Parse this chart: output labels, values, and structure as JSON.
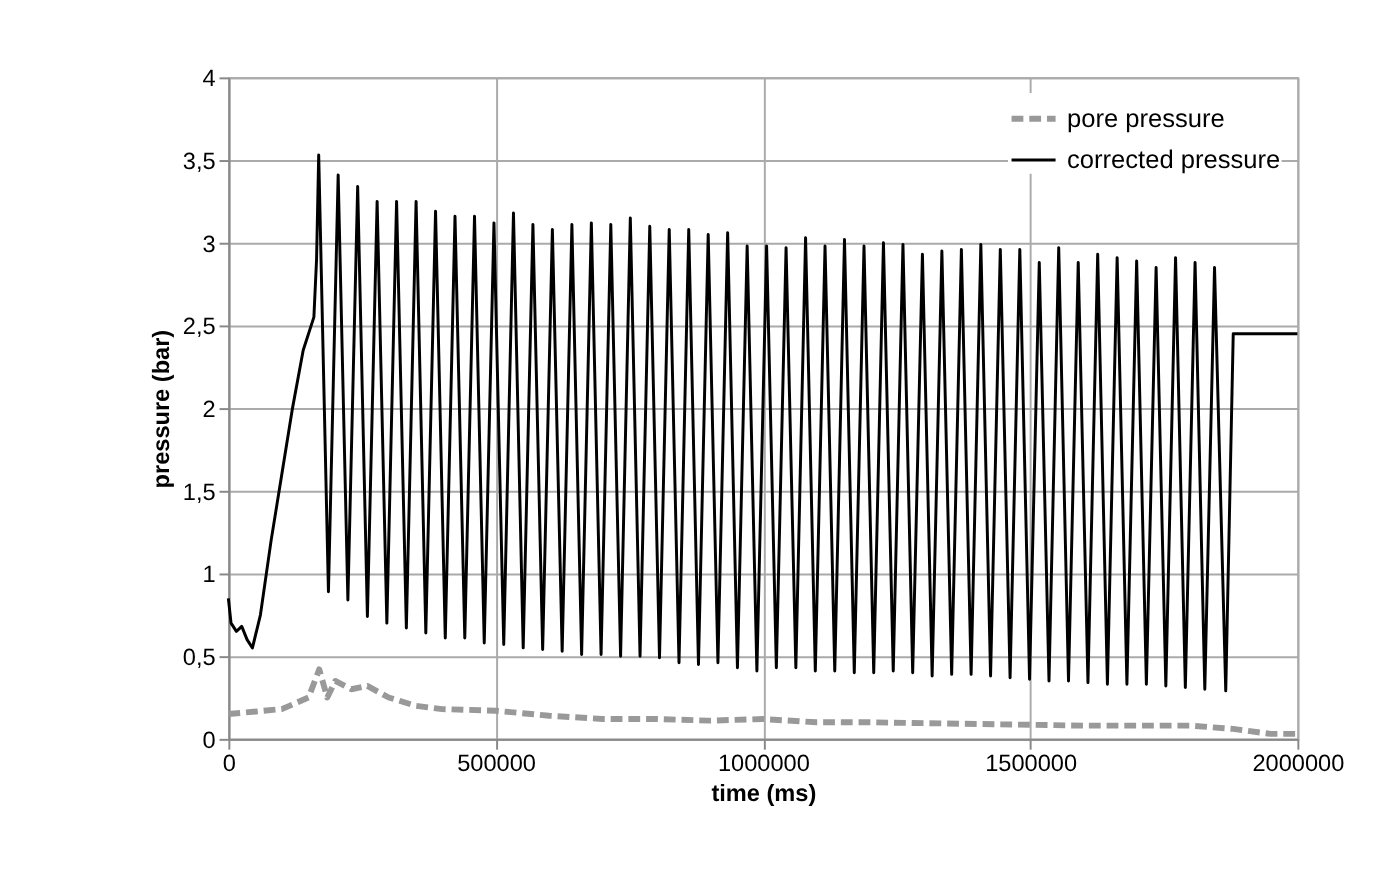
{
  "chart_data": {
    "type": "line",
    "xlabel": "time (ms)",
    "ylabel": "pressure (bar)",
    "xlim": [
      0,
      2000000
    ],
    "xticks": [
      0,
      500000,
      1000000,
      1500000,
      2000000
    ],
    "ylim": [
      0,
      4
    ],
    "yticks": [
      0,
      {
        "value": 0.5,
        "label": "0,5"
      },
      1,
      {
        "value": 1.5,
        "label": "1,5"
      },
      2,
      {
        "value": 2.5,
        "label": "2,5"
      },
      3,
      {
        "value": 3.5,
        "label": "3,5"
      },
      4
    ],
    "grid": true,
    "legend": "top right",
    "marker": "none",
    "series": [
      {
        "name": "pore pressure",
        "color": "#999999",
        "line_style": "dashed",
        "x": [
          0,
          100000,
          150000,
          170000,
          185000,
          200000,
          230000,
          260000,
          300000,
          350000,
          400000,
          500000,
          600000,
          700000,
          800000,
          900000,
          1000000,
          1100000,
          1200000,
          1400000,
          1600000,
          1800000,
          1880000,
          1950000,
          2000000
        ],
        "values": [
          0.15,
          0.18,
          0.25,
          0.42,
          0.25,
          0.35,
          0.3,
          0.32,
          0.25,
          0.2,
          0.18,
          0.17,
          0.14,
          0.12,
          0.12,
          0.11,
          0.12,
          0.1,
          0.1,
          0.09,
          0.08,
          0.08,
          0.06,
          0.03,
          0.03
        ]
      },
      {
        "name": "corrected pressure",
        "color": "#000000",
        "line_style": "solid",
        "x": [
          0,
          5000,
          15000,
          25000,
          35000,
          45000,
          60000,
          80000,
          100000,
          120000,
          140000,
          160000,
          165000,
          169000,
          187200,
          205400,
          223600,
          241900,
          260100,
          278300,
          296500,
          314700,
          333000,
          351200,
          369400,
          387600,
          405800,
          424000,
          442300,
          460500,
          478700,
          496900,
          515200,
          533400,
          551600,
          569800,
          588000,
          606200,
          624500,
          642700,
          660900,
          679100,
          697300,
          715500,
          733800,
          752000,
          770200,
          788400,
          806600,
          824800,
          843100,
          861300,
          879500,
          897700,
          915900,
          934100,
          952400,
          970600,
          988800,
          1007000,
          1025200,
          1043400,
          1061700,
          1079900,
          1098100,
          1116300,
          1134500,
          1152700,
          1171000,
          1189200,
          1207400,
          1225600,
          1243900,
          1262100,
          1280300,
          1298500,
          1316700,
          1334900,
          1353200,
          1371400,
          1389600,
          1407800,
          1426000,
          1444200,
          1462500,
          1480700,
          1498900,
          1517100,
          1535300,
          1553500,
          1571800,
          1590000,
          1608200,
          1626400,
          1644600,
          1662800,
          1681100,
          1699300,
          1717500,
          1735700,
          1753900,
          1772100,
          1790400,
          1808600,
          1826800,
          1845000,
          1866000,
          1880000,
          2000000
        ],
        "values": [
          0.85,
          0.7,
          0.65,
          0.68,
          0.6,
          0.55,
          0.75,
          1.2,
          1.6,
          2.0,
          2.35,
          2.55,
          2.9,
          3.53,
          0.89,
          3.41,
          0.84,
          3.34,
          0.74,
          3.25,
          0.7,
          3.25,
          0.67,
          3.25,
          0.64,
          3.19,
          0.61,
          3.16,
          0.61,
          3.16,
          0.58,
          3.12,
          0.57,
          3.18,
          0.55,
          3.11,
          0.54,
          3.08,
          0.53,
          3.11,
          0.51,
          3.12,
          0.51,
          3.11,
          0.5,
          3.15,
          0.5,
          3.1,
          0.49,
          3.08,
          0.46,
          3.08,
          0.45,
          3.05,
          0.46,
          3.06,
          0.43,
          2.98,
          0.41,
          2.98,
          0.43,
          2.97,
          0.43,
          3.03,
          0.41,
          2.98,
          0.41,
          3.02,
          0.4,
          2.98,
          0.4,
          3.0,
          0.41,
          2.99,
          0.4,
          2.93,
          0.38,
          2.95,
          0.39,
          2.96,
          0.39,
          2.99,
          0.38,
          2.96,
          0.37,
          2.96,
          0.36,
          2.88,
          0.35,
          2.97,
          0.35,
          2.88,
          0.34,
          2.93,
          0.33,
          2.91,
          0.33,
          2.89,
          0.33,
          2.85,
          0.32,
          2.91,
          0.31,
          2.88,
          0.3,
          2.85,
          0.29,
          2.45,
          2.45
        ]
      }
    ]
  }
}
